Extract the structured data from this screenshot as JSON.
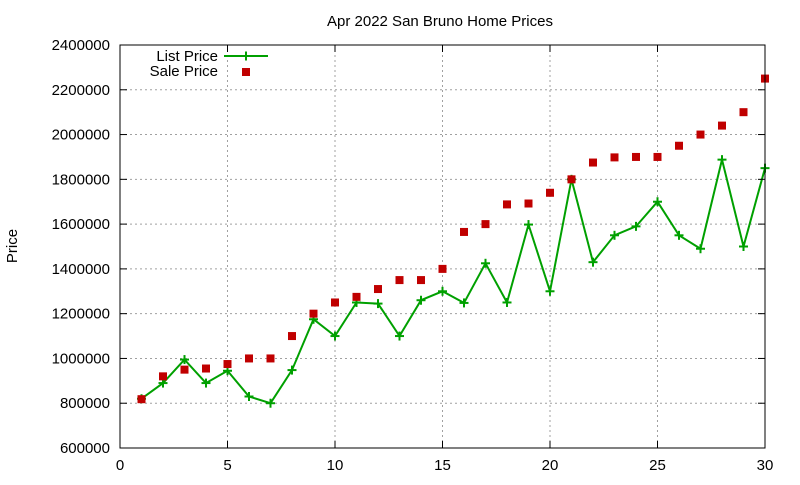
{
  "chart_data": {
    "type": "line",
    "title": "Apr 2022 San Bruno Home Prices",
    "xlabel": "",
    "ylabel": "Price",
    "xlim": [
      0,
      30
    ],
    "ylim": [
      600000,
      2400000
    ],
    "xticks": [
      0,
      5,
      10,
      15,
      20,
      25,
      30
    ],
    "yticks": [
      600000,
      800000,
      1000000,
      1200000,
      1400000,
      1600000,
      1800000,
      2000000,
      2200000,
      2400000
    ],
    "grid": true,
    "legend_position": "top-left",
    "x": [
      1,
      2,
      3,
      4,
      5,
      6,
      7,
      8,
      9,
      10,
      11,
      12,
      13,
      14,
      15,
      16,
      17,
      18,
      19,
      20,
      21,
      22,
      23,
      24,
      25,
      26,
      27,
      28,
      29,
      30
    ],
    "series": [
      {
        "name": "List Price",
        "style": "line-with-plus-markers",
        "color": "#00a000",
        "values": [
          820000,
          890000,
          995000,
          890000,
          945000,
          830000,
          800000,
          948000,
          1175000,
          1100000,
          1250000,
          1245000,
          1100000,
          1260000,
          1300000,
          1248000,
          1425000,
          1250000,
          1598000,
          1300000,
          1800000,
          1430000,
          1550000,
          1590000,
          1700000,
          1550000,
          1490000,
          1888000,
          1500000,
          1850000
        ]
      },
      {
        "name": "Sale Price",
        "style": "square-markers",
        "color": "#c00000",
        "values": [
          818000,
          920000,
          950000,
          955000,
          975000,
          1000000,
          1000000,
          1100000,
          1200000,
          1250000,
          1275000,
          1310000,
          1350000,
          1350000,
          1400000,
          1565000,
          1600000,
          1688000,
          1692000,
          1740000,
          1800000,
          1875000,
          1898000,
          1900000,
          1900000,
          1950000,
          2000000,
          2040000,
          2100000,
          2250000
        ]
      }
    ]
  }
}
